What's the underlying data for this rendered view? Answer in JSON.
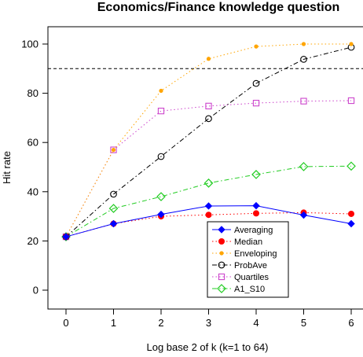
{
  "chart_data": {
    "type": "line",
    "title": "Economics/Finance knowledge question",
    "xlabel": "Log base 2 of k (k=1 to 64)",
    "ylabel": "Hit rate",
    "x": [
      0,
      1,
      2,
      3,
      4,
      5,
      6
    ],
    "xlim": [
      0,
      6
    ],
    "ylim": [
      0,
      100
    ],
    "x_ticks": [
      "0",
      "1",
      "2",
      "3",
      "4",
      "5",
      "6"
    ],
    "y_ticks": [
      "0",
      "20",
      "40",
      "60",
      "80",
      "100"
    ],
    "reference_line": {
      "y": 90,
      "style": "dashed"
    },
    "legend_position": "bottom-center",
    "series": [
      {
        "name": "Averaging",
        "color": "#0000ff",
        "marker": "diamond-filled",
        "line_style": "solid",
        "values": [
          21.7,
          27,
          30.8,
          34.2,
          34.3,
          30.5,
          27
        ]
      },
      {
        "name": "Median",
        "color": "#ff0000",
        "marker": "circle-filled",
        "line_style": "dotted",
        "values": [
          21.7,
          27,
          30,
          30.6,
          31.2,
          31.5,
          31
        ]
      },
      {
        "name": "Enveloping",
        "color": "#ffa500",
        "marker": "dot-filled",
        "line_style": "dotted",
        "values": [
          21.7,
          57,
          81,
          94,
          99,
          100,
          100
        ]
      },
      {
        "name": "ProbAve",
        "color": "#000000",
        "marker": "circle-open",
        "line_style": "dotdash",
        "values": [
          21.7,
          39,
          54.3,
          69.7,
          84,
          93.8,
          98.7
        ]
      },
      {
        "name": "Quartiles",
        "color": "#cc44cc",
        "marker": "square-open",
        "line_style": "dotted",
        "values": [
          21.7,
          57,
          72.8,
          74.8,
          76,
          76.8,
          77
        ]
      },
      {
        "name": "A1_S10",
        "color": "#22cc22",
        "marker": "diamond-open",
        "line_style": "dotdash",
        "values": [
          21.7,
          33.2,
          38,
          43.5,
          47,
          50.2,
          50.4
        ]
      }
    ]
  }
}
